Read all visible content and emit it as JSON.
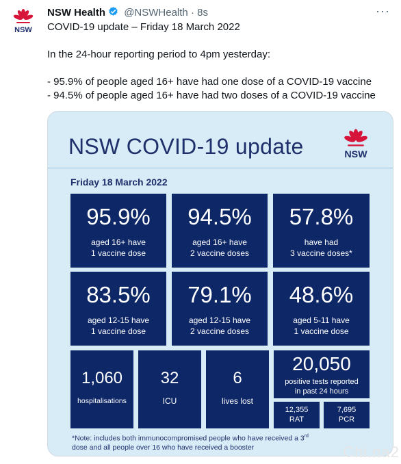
{
  "tweet": {
    "author_name": "NSW Health",
    "handle": "@NSWHealth",
    "separator": "·",
    "time": "8s",
    "more": "···",
    "logo_text": "NSW",
    "lines": [
      "COVID-19 update – Friday 18 March 2022",
      "In the 24-hour reporting period to 4pm yesterday:",
      "- 95.9% of people aged 16+ have had one dose of a COVID-19 vaccine",
      "- 94.5% of people aged 16+ have had two doses of a COVID-19 vaccine"
    ]
  },
  "card": {
    "title": "NSW COVID-19 update",
    "logo_text": "NSW",
    "date": "Friday 18 March 2022",
    "vaccine_stats": [
      {
        "value": "95.9%",
        "line1": "aged 16+ have",
        "line2": "1 vaccine dose"
      },
      {
        "value": "94.5%",
        "line1": "aged 16+ have",
        "line2": "2 vaccine doses"
      },
      {
        "value": "57.8%",
        "line1": "have had",
        "line2": "3 vaccine doses*"
      },
      {
        "value": "83.5%",
        "line1": "aged 12-15 have",
        "line2": "1 vaccine dose"
      },
      {
        "value": "79.1%",
        "line1": "aged 12-15 have",
        "line2": "2 vaccine doses"
      },
      {
        "value": "48.6%",
        "line1": "aged 5-11 have",
        "line2": "1 vaccine dose"
      }
    ],
    "hospital_stats": [
      {
        "value": "1,060",
        "label": "hospitalisations"
      },
      {
        "value": "32",
        "label": "ICU"
      },
      {
        "value": "6",
        "label": "lives lost"
      }
    ],
    "tests": {
      "value": "20,050",
      "line1": "positive tests reported",
      "line2": "in past 24 hours",
      "rat_value": "12,355",
      "rat_label": "RAT",
      "pcr_value": "7,695",
      "pcr_label": "PCR"
    },
    "footnote_part1": "*Note: includes both immunocompromised  people who have received a 3",
    "footnote_sup": "rd",
    "footnote_part2": "dose and all people over 16 who have received a booster"
  },
  "watermark": "Chi.na2",
  "colors": {
    "card_background": "#d7ecf7",
    "stat_box": "#0e2766",
    "title_text": "#1f2f6b",
    "verified_badge": "#1d9bf0",
    "waratah_red": "#d7153a"
  },
  "icons": [
    "waratah-logo-icon",
    "verified-badge-icon",
    "more-options-icon"
  ]
}
